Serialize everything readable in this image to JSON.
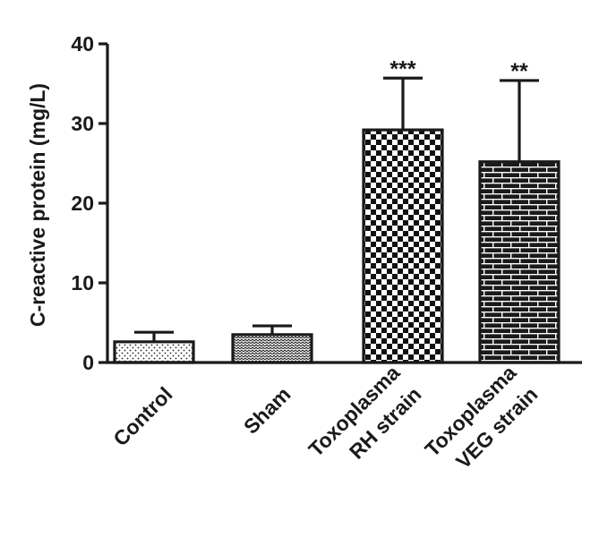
{
  "chart_data": {
    "type": "bar",
    "ylabel": "C-reactive protein (mg/L)",
    "xlabel": "",
    "ylim": [
      0,
      40
    ],
    "yticks": [
      0,
      10,
      20,
      30,
      40
    ],
    "categories": [
      [
        "Control"
      ],
      [
        "Sham"
      ],
      [
        "Toxoplasma",
        "RH strain"
      ],
      [
        "Toxoplasma",
        "VEG strain"
      ]
    ],
    "values": [
      2.6,
      3.5,
      29.2,
      25.2
    ],
    "errors": [
      1.2,
      1.1,
      6.5,
      10.2
    ],
    "significance": [
      "",
      "",
      "***",
      "**"
    ],
    "patterns": [
      "dots",
      "waves",
      "checker",
      "brick"
    ],
    "grid": false,
    "legend": "none"
  }
}
